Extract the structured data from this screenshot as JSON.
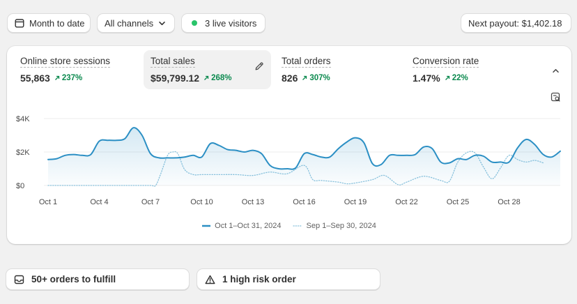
{
  "toolbar": {
    "date_range": "Month to date",
    "channels": "All channels",
    "live_visitors": "3 live visitors",
    "payout": "Next payout: $1,402.18"
  },
  "metrics": [
    {
      "label": "Online store sessions",
      "value": "55,863",
      "change": "237%"
    },
    {
      "label": "Total sales",
      "value": "$59,799.12",
      "change": "268%",
      "selected": true
    },
    {
      "label": "Total orders",
      "value": "826",
      "change": "307%"
    },
    {
      "label": "Conversion rate",
      "value": "1.47%",
      "change": "22%"
    }
  ],
  "colors": {
    "primary": "#2b8fc4",
    "comparison": "#8cc3dd",
    "positive": "#0c8a4f",
    "live": "#29c46a"
  },
  "icons": {
    "date": "calendar-icon",
    "channels": "chevron-down-icon",
    "edit": "pencil-icon",
    "collapse": "chevron-up-icon",
    "report": "report-search-icon",
    "orders": "inbox-icon",
    "risk": "warning-icon"
  },
  "chart_data": {
    "type": "line",
    "y_ticks": [
      "$0",
      "$2K",
      "$4K"
    ],
    "ylim": [
      0,
      4000
    ],
    "x_tick_labels": [
      "Oct 1",
      "Oct 4",
      "Oct 7",
      "Oct 10",
      "Oct 13",
      "Oct 16",
      "Oct 19",
      "Oct 22",
      "Oct 25",
      "Oct 28"
    ],
    "x_tick_days": [
      1,
      4,
      7,
      10,
      13,
      16,
      19,
      22,
      25,
      28
    ],
    "xlim": [
      1,
      31
    ],
    "grid": true,
    "legend": "bottom-center",
    "series": [
      {
        "name": "Oct 1–Oct 31, 2024",
        "style": "solid",
        "x": [
          1,
          1.5,
          2,
          2.5,
          3,
          3.5,
          4,
          4.5,
          5,
          5.5,
          6,
          6.5,
          7,
          7.5,
          8,
          8.5,
          9,
          9.5,
          10,
          10.5,
          11,
          11.5,
          12,
          12.5,
          13,
          13.5,
          14,
          14.5,
          15,
          15.5,
          16,
          16.5,
          17,
          17.5,
          18,
          18.5,
          19,
          19.5,
          20,
          20.5,
          21,
          21.5,
          22,
          22.5,
          23,
          23.5,
          24,
          24.5,
          25,
          25.5,
          26,
          26.5,
          27,
          27.5,
          28,
          28.5,
          29,
          29.5,
          30,
          30.5,
          31
        ],
        "y": [
          1550,
          1600,
          1800,
          1850,
          1800,
          1850,
          2650,
          2700,
          2700,
          2800,
          3450,
          3000,
          1900,
          1650,
          1650,
          1650,
          1700,
          1800,
          1700,
          2500,
          2400,
          2150,
          2100,
          2000,
          2100,
          1900,
          1200,
          1000,
          1000,
          1050,
          1900,
          1850,
          1700,
          1700,
          2200,
          2600,
          2850,
          2550,
          1300,
          1250,
          1800,
          1800,
          1800,
          1850,
          2300,
          2200,
          1400,
          1350,
          1600,
          1550,
          1800,
          1750,
          1400,
          1400,
          1400,
          2250,
          2750,
          2450,
          1850,
          1700,
          2050
        ]
      },
      {
        "name": "Sep 1–Sep 30, 2024",
        "style": "dotted",
        "x": [
          1,
          2,
          3,
          4,
          5,
          6,
          7,
          7.3,
          7.6,
          8,
          8.3,
          8.6,
          9,
          9.5,
          10,
          11,
          12,
          13,
          14,
          15,
          16,
          16.5,
          17,
          18,
          18.5,
          19,
          20,
          20.7,
          21.5,
          22,
          23,
          24,
          24.5,
          25,
          25.5,
          26,
          26.5,
          27,
          27.5,
          28,
          28.5,
          29,
          29.5,
          30
        ],
        "y": [
          0,
          0,
          0,
          0,
          0,
          0,
          0,
          0,
          700,
          1800,
          2000,
          1900,
          950,
          650,
          650,
          650,
          650,
          600,
          800,
          700,
          1200,
          350,
          300,
          200,
          100,
          150,
          350,
          600,
          50,
          200,
          550,
          300,
          250,
          1400,
          1950,
          1950,
          1100,
          400,
          1050,
          1800,
          1550,
          1400,
          1500,
          1350
        ]
      }
    ]
  },
  "bottom": {
    "orders_to_fulfill": "50+ orders to fulfill",
    "risk_orders": "1 high risk order"
  }
}
